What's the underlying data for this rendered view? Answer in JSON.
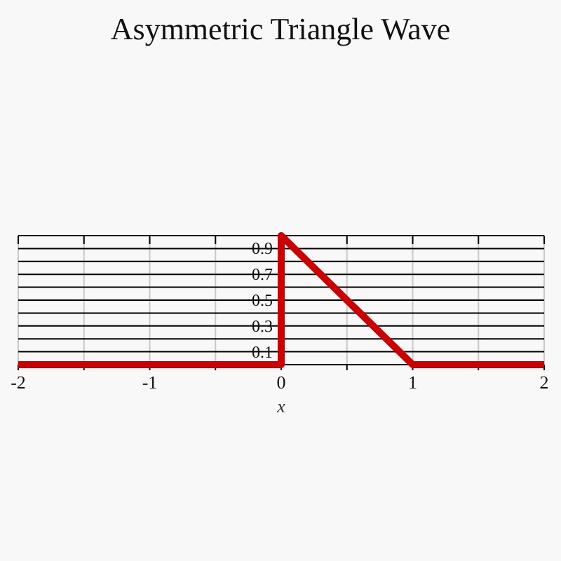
{
  "chart_data": {
    "type": "line",
    "title": "Asymmetric Triangle Wave",
    "xlabel": "x",
    "x": [
      -2,
      0,
      0,
      1,
      2
    ],
    "series": [
      {
        "color": "#cc0000",
        "values": [
          0,
          0,
          1,
          0,
          0
        ]
      }
    ],
    "xlim": [
      -2,
      2
    ],
    "ylim": [
      0,
      1
    ],
    "xticks": [
      -2,
      {
        "value": -1.5,
        "label": null
      },
      -1,
      {
        "value": -0.5,
        "label": null
      },
      0,
      {
        "value": 0.5,
        "label": null
      },
      1,
      {
        "value": 1.5,
        "label": null
      },
      2
    ],
    "yticks": [
      {
        "value": 0,
        "label": null
      },
      0.1,
      {
        "value": 0.2,
        "label": null
      },
      0.3,
      {
        "value": 0.4,
        "label": null
      },
      0.5,
      {
        "value": 0.6,
        "label": null
      },
      0.7,
      {
        "value": 0.8,
        "label": null
      },
      0.9,
      {
        "value": 1,
        "label": null
      }
    ],
    "grid": true,
    "marker": "none",
    "line_style": "solid"
  }
}
